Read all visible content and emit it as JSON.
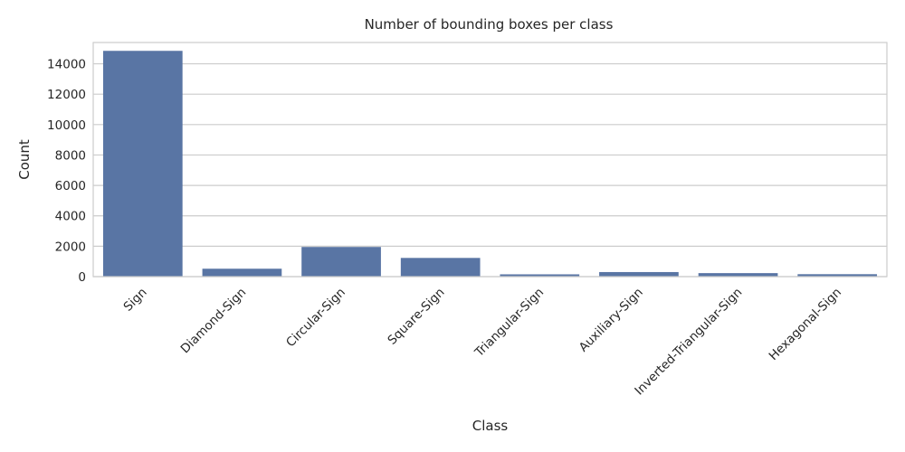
{
  "chart_data": {
    "type": "bar",
    "title": "Number of bounding boxes per class",
    "xlabel": "Class",
    "ylabel": "Count",
    "categories": [
      "Sign",
      "Diamond-Sign",
      "Circular-Sign",
      "Square-Sign",
      "Triangular-Sign",
      "Auxiliary-Sign",
      "Inverted-Triangular-Sign",
      "Hexagonal-Sign"
    ],
    "values": [
      14850,
      520,
      1950,
      1230,
      150,
      300,
      230,
      160
    ],
    "ylim": [
      0,
      15400
    ],
    "yticks": [
      0,
      2000,
      4000,
      6000,
      8000,
      10000,
      12000,
      14000
    ],
    "ytick_labels": [
      "0",
      "2000",
      "4000",
      "6000",
      "8000",
      "10000",
      "12000",
      "14000"
    ],
    "grid": true,
    "bar_color": "#5975a4",
    "xtick_rotation": 45
  }
}
